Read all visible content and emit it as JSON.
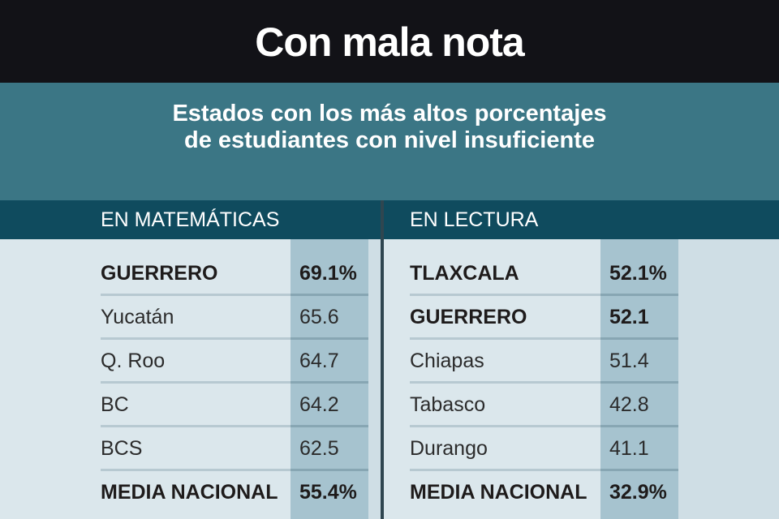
{
  "title": "Con mala nota",
  "subtitle": [
    "Estados con los más altos porcentajes",
    "de estudiantes con nivel insuficiente"
  ],
  "chart_data": {
    "type": "table",
    "tables": [
      {
        "header": "EN MATEMÁTICAS",
        "rows": [
          {
            "state": "GUERRERO",
            "value": 69.1,
            "label": "69.1%",
            "bold": true
          },
          {
            "state": "Yucatán",
            "value": 65.6,
            "label": "65.6",
            "bold": false
          },
          {
            "state": "Q. Roo",
            "value": 64.7,
            "label": "64.7",
            "bold": false
          },
          {
            "state": "BC",
            "value": 64.2,
            "label": "64.2",
            "bold": false
          },
          {
            "state": "BCS",
            "value": 62.5,
            "label": "62.5",
            "bold": false
          },
          {
            "state": "MEDIA NACIONAL",
            "value": 55.4,
            "label": "55.4%",
            "bold": true
          }
        ]
      },
      {
        "header": "EN LECTURA",
        "rows": [
          {
            "state": "TLAXCALA",
            "value": 52.1,
            "label": "52.1%",
            "bold": true
          },
          {
            "state": "GUERRERO",
            "value": 52.1,
            "label": "52.1",
            "bold": true
          },
          {
            "state": "Chiapas",
            "value": 51.4,
            "label": "51.4",
            "bold": false
          },
          {
            "state": "Tabasco",
            "value": 42.8,
            "label": "42.8",
            "bold": false
          },
          {
            "state": "Durango",
            "value": 41.1,
            "label": "41.1",
            "bold": false
          },
          {
            "state": "MEDIA NACIONAL",
            "value": 32.9,
            "label": "32.9%",
            "bold": true
          }
        ]
      }
    ]
  }
}
